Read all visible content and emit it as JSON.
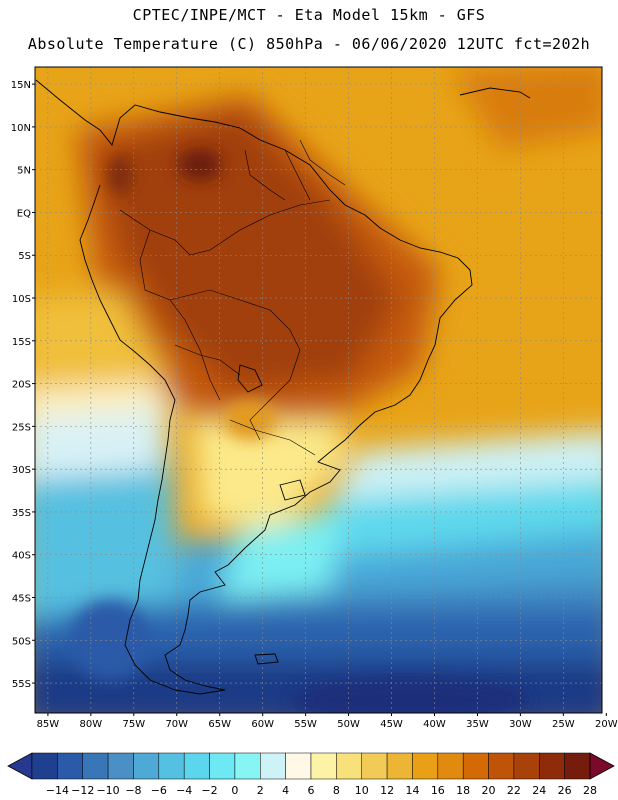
{
  "header": {
    "line1": "CPTEC/INPE/MCT -  Eta Model 15km - GFS",
    "line2": "Absolute Temperature (C) 850hPa - 06/06/2020 12UTC fct=202h"
  },
  "map": {
    "lat_labels": [
      "15N",
      "10N",
      "5N",
      "EQ",
      "5S",
      "10S",
      "15S",
      "20S",
      "25S",
      "30S",
      "35S",
      "40S",
      "45S",
      "50S",
      "55S"
    ],
    "lon_labels": [
      "85W",
      "80W",
      "75W",
      "70W",
      "65W",
      "60W",
      "55W",
      "50W",
      "45W",
      "40W",
      "35W",
      "30W",
      "25W",
      "20W"
    ],
    "lon_range": [
      -86.5,
      -20.5
    ],
    "lat_range": [
      -58.5,
      17
    ]
  },
  "colorbar": {
    "labels": [
      "-14",
      "-12",
      "-10",
      "-8",
      "-6",
      "-4",
      "-2",
      "0",
      "2",
      "4",
      "6",
      "8",
      "10",
      "12",
      "14",
      "16",
      "18",
      "20",
      "22",
      "24",
      "26",
      "28"
    ],
    "colors": [
      "#1f3f8f",
      "#2a5aa8",
      "#3876b8",
      "#4a8fc6",
      "#4fa9d6",
      "#55c1e2",
      "#5cd6ec",
      "#6ee8f2",
      "#88f5f5",
      "#cdf3f7",
      "#fff8e6",
      "#fdf3a6",
      "#f8e07a",
      "#f2cb57",
      "#ecb535",
      "#e99f16",
      "#e08a0f",
      "#d36a06",
      "#bf5408",
      "#a8410a",
      "#8e2c0a",
      "#761c0c"
    ],
    "under_color": "#27398f",
    "over_color": "#7a0a2a"
  }
}
